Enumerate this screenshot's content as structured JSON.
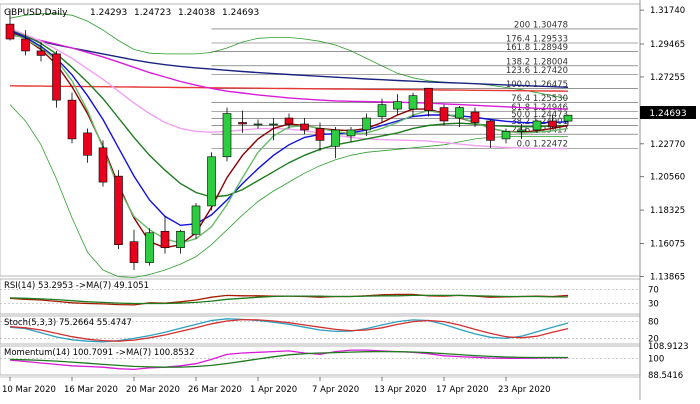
{
  "chart_data": {
    "type": "candlestick",
    "symbol": "GBPUSD,Daily",
    "ohlc_header": [
      "1.24293",
      "1.24723",
      "1.24038",
      "1.24693"
    ],
    "current_price": "1.24693",
    "x_labels": [
      "10 Mar 2020",
      "16 Mar 2020",
      "20 Mar 2020",
      "26 Mar 2020",
      "1 Apr 2020",
      "7 Apr 2020",
      "13 Apr 2020",
      "17 Apr 2020",
      "23 Apr 2020"
    ],
    "x_label_index": [
      0,
      4,
      8,
      12,
      16,
      20,
      24,
      28,
      32
    ],
    "ylim": [
      1.139,
      1.3215
    ],
    "y_ticks": [
      "1.31740",
      "1.29465",
      "1.27255",
      "1.25040",
      "1.22770",
      "1.20560",
      "1.18325",
      "1.16075",
      "1.13865"
    ],
    "candles": [
      {
        "o": 1.308,
        "h": 1.318,
        "l": 1.297,
        "c": 1.298
      },
      {
        "o": 1.298,
        "h": 1.304,
        "l": 1.287,
        "c": 1.29
      },
      {
        "o": 1.29,
        "h": 1.296,
        "l": 1.283,
        "c": 1.287
      },
      {
        "o": 1.288,
        "h": 1.29,
        "l": 1.252,
        "c": 1.257
      },
      {
        "o": 1.257,
        "h": 1.262,
        "l": 1.228,
        "c": 1.231
      },
      {
        "o": 1.235,
        "h": 1.238,
        "l": 1.215,
        "c": 1.22
      },
      {
        "o": 1.225,
        "h": 1.23,
        "l": 1.199,
        "c": 1.202
      },
      {
        "o": 1.206,
        "h": 1.21,
        "l": 1.157,
        "c": 1.16
      },
      {
        "o": 1.162,
        "h": 1.17,
        "l": 1.143,
        "c": 1.148
      },
      {
        "o": 1.148,
        "h": 1.171,
        "l": 1.146,
        "c": 1.168
      },
      {
        "o": 1.169,
        "h": 1.179,
        "l": 1.154,
        "c": 1.158
      },
      {
        "o": 1.158,
        "h": 1.17,
        "l": 1.154,
        "c": 1.169
      },
      {
        "o": 1.167,
        "h": 1.188,
        "l": 1.164,
        "c": 1.186
      },
      {
        "o": 1.186,
        "h": 1.222,
        "l": 1.183,
        "c": 1.219
      },
      {
        "o": 1.219,
        "h": 1.252,
        "l": 1.216,
        "c": 1.248
      },
      {
        "o": 1.242,
        "h": 1.25,
        "l": 1.235,
        "c": 1.241
      },
      {
        "o": 1.241,
        "h": 1.244,
        "l": 1.238,
        "c": 1.241
      },
      {
        "o": 1.241,
        "h": 1.245,
        "l": 1.23,
        "c": 1.241
      },
      {
        "o": 1.245,
        "h": 1.248,
        "l": 1.238,
        "c": 1.241
      },
      {
        "o": 1.241,
        "h": 1.245,
        "l": 1.234,
        "c": 1.237
      },
      {
        "o": 1.238,
        "h": 1.242,
        "l": 1.223,
        "c": 1.23
      },
      {
        "o": 1.226,
        "h": 1.239,
        "l": 1.218,
        "c": 1.237
      },
      {
        "o": 1.233,
        "h": 1.239,
        "l": 1.229,
        "c": 1.237
      },
      {
        "o": 1.237,
        "h": 1.248,
        "l": 1.233,
        "c": 1.245
      },
      {
        "o": 1.246,
        "h": 1.258,
        "l": 1.242,
        "c": 1.254
      },
      {
        "o": 1.251,
        "h": 1.261,
        "l": 1.247,
        "c": 1.256
      },
      {
        "o": 1.251,
        "h": 1.262,
        "l": 1.246,
        "c": 1.26
      },
      {
        "o": 1.265,
        "h": 1.265,
        "l": 1.246,
        "c": 1.25
      },
      {
        "o": 1.252,
        "h": 1.254,
        "l": 1.24,
        "c": 1.243
      },
      {
        "o": 1.245,
        "h": 1.253,
        "l": 1.239,
        "c": 1.252
      },
      {
        "o": 1.249,
        "h": 1.252,
        "l": 1.239,
        "c": 1.242
      },
      {
        "o": 1.243,
        "h": 1.244,
        "l": 1.225,
        "c": 1.23
      },
      {
        "o": 1.231,
        "h": 1.238,
        "l": 1.228,
        "c": 1.236
      },
      {
        "o": 1.236,
        "h": 1.241,
        "l": 1.231,
        "c": 1.237
      },
      {
        "o": 1.237,
        "h": 1.244,
        "l": 1.235,
        "c": 1.243
      },
      {
        "o": 1.243,
        "h": 1.247,
        "l": 1.238,
        "c": 1.239
      },
      {
        "o": 1.2429,
        "h": 1.2472,
        "l": 1.2404,
        "c": 1.2469
      }
    ],
    "ma_lines": [
      {
        "name": "",
        "color": "#1a237e",
        "y": [
          1.301,
          1.299,
          1.2965,
          1.294,
          1.292,
          1.29,
          1.288,
          1.286,
          1.284,
          1.2822,
          1.2808,
          1.2796,
          1.2786,
          1.2778,
          1.277,
          1.2762,
          1.2755,
          1.2748,
          1.2742,
          1.2736,
          1.273,
          1.2724,
          1.2718,
          1.2712,
          1.2707,
          1.2702,
          1.2697,
          1.2692,
          1.2688,
          1.2684,
          1.268,
          1.2676,
          1.2672,
          1.2668,
          1.2664,
          1.266,
          1.2656
        ]
      },
      {
        "name": "",
        "color": "#e53935",
        "y": [
          1.2666,
          1.2665,
          1.2664,
          1.2663,
          1.2662,
          1.2661,
          1.266,
          1.2659,
          1.2658,
          1.2657,
          1.2656,
          1.2655,
          1.2654,
          1.2653,
          1.2652,
          1.2651,
          1.265,
          1.2649,
          1.2648,
          1.2647,
          1.2646,
          1.2645,
          1.2644,
          1.2643,
          1.2642,
          1.2641,
          1.264,
          1.2639,
          1.2638,
          1.2637,
          1.2636,
          1.2635,
          1.2634,
          1.2633,
          1.2632,
          1.2631,
          1.263
        ]
      },
      {
        "name": "",
        "color": "#d81bd8",
        "y": [
          1.302,
          1.2995,
          1.297,
          1.2945,
          1.292,
          1.289,
          1.286,
          1.2825,
          1.279,
          1.2755,
          1.2725,
          1.2695,
          1.267,
          1.2648,
          1.263,
          1.2618,
          1.2605,
          1.2595,
          1.2585,
          1.2577,
          1.257,
          1.2565,
          1.2562,
          1.256,
          1.2558,
          1.2556,
          1.2553,
          1.255,
          1.2545,
          1.254,
          1.2535,
          1.253,
          1.2525,
          1.252,
          1.2515,
          1.2512,
          1.251
        ]
      },
      {
        "name": "",
        "color": "#f0a0f0",
        "y": [
          1.305,
          1.301,
          1.2965,
          1.291,
          1.285,
          1.278,
          1.271,
          1.263,
          1.255,
          1.248,
          1.242,
          1.238,
          1.236,
          1.2355,
          1.236,
          1.237,
          1.2378,
          1.238,
          1.2375,
          1.2365,
          1.235,
          1.2335,
          1.232,
          1.231,
          1.2305,
          1.2302,
          1.23,
          1.2295,
          1.2285,
          1.2275,
          1.2265,
          1.2258,
          1.2252,
          1.2248,
          1.2246,
          1.2245,
          1.2245
        ]
      },
      {
        "name": "",
        "color": "#1e7b1e",
        "y": [
          1.304,
          1.3,
          1.295,
          1.288,
          1.279,
          1.269,
          1.258,
          1.245,
          1.232,
          1.22,
          1.21,
          1.201,
          1.195,
          1.192,
          1.193,
          1.197,
          1.203,
          1.209,
          1.215,
          1.22,
          1.224,
          1.227,
          1.229,
          1.231,
          1.233,
          1.235,
          1.238,
          1.24,
          1.241,
          1.2415,
          1.241,
          1.24,
          1.2395,
          1.2392,
          1.2392,
          1.2396,
          1.24
        ]
      },
      {
        "name": "",
        "color": "#1010e0",
        "y": [
          1.304,
          1.299,
          1.293,
          1.285,
          1.274,
          1.26,
          1.244,
          1.225,
          1.206,
          1.19,
          1.179,
          1.173,
          1.174,
          1.18,
          1.19,
          1.201,
          1.211,
          1.22,
          1.227,
          1.232,
          1.234,
          1.2345,
          1.235,
          1.237,
          1.24,
          1.243,
          1.246,
          1.247,
          1.247,
          1.2465,
          1.2455,
          1.244,
          1.2428,
          1.242,
          1.2418,
          1.242,
          1.2425
        ]
      },
      {
        "name": "",
        "color": "#8b0000",
        "y": [
          1.303,
          1.298,
          1.291,
          1.281,
          1.266,
          1.248,
          1.226,
          1.2,
          1.178,
          1.162,
          1.158,
          1.16,
          1.168,
          1.185,
          1.205,
          1.22,
          1.231,
          1.238,
          1.241,
          1.24,
          1.238,
          1.237,
          1.2365,
          1.238,
          1.242,
          1.247,
          1.251,
          1.251,
          1.248,
          1.245,
          1.242,
          1.238,
          1.236,
          1.2355,
          1.2365,
          1.238,
          1.24
        ]
      },
      {
        "name": "",
        "color": "#66bb6a",
        "y": [
          1.302,
          1.298,
          1.292,
          1.284,
          1.27,
          1.25,
          1.225,
          1.198,
          1.179,
          1.17,
          1.164,
          1.161,
          1.164,
          1.172,
          1.187,
          1.205,
          1.222,
          1.233,
          1.239,
          1.24,
          1.238,
          1.236,
          1.2345,
          1.235,
          1.238,
          1.242,
          1.247,
          1.25,
          1.248,
          1.2455,
          1.242,
          1.238,
          1.236,
          1.235,
          1.2355,
          1.2365,
          1.238
        ]
      }
    ],
    "bands": [
      {
        "name": "",
        "color": "#2e9e2e",
        "upper": [
          1.312,
          1.314,
          1.315,
          1.315,
          1.314,
          1.31,
          1.304,
          1.297,
          1.291,
          1.2885,
          1.288,
          1.288,
          1.288,
          1.289,
          1.292,
          1.296,
          1.2985,
          1.299,
          1.299,
          1.298,
          1.2965,
          1.294,
          1.29,
          1.285,
          1.28,
          1.275,
          1.272,
          1.27,
          1.269,
          1.2685,
          1.268,
          1.267,
          1.2655,
          1.264,
          1.262,
          1.26,
          1.258
        ],
        "lower": [
          1.254,
          1.243,
          1.227,
          1.204,
          1.178,
          1.155,
          1.143,
          1.1385,
          1.138,
          1.14,
          1.143,
          1.147,
          1.152,
          1.16,
          1.17,
          1.18,
          1.189,
          1.196,
          1.202,
          1.208,
          1.213,
          1.217,
          1.22,
          1.222,
          1.223,
          1.224,
          1.225,
          1.226,
          1.227,
          1.229,
          1.231,
          1.232,
          1.2325,
          1.2325,
          1.2325,
          1.2325,
          1.2325
        ]
      }
    ],
    "fibo": {
      "color": "#555555",
      "levels": [
        {
          "label": "200 1.30478",
          "y": 1.30478,
          "pos": "upper"
        },
        {
          "label": "176.4 1.29533",
          "y": 1.29533,
          "pos": "upper"
        },
        {
          "label": "161.8 1.28949",
          "y": 1.28949,
          "pos": "upper"
        },
        {
          "label": "138.2 1.28004",
          "y": 1.28004,
          "pos": "upper"
        },
        {
          "label": "123.6 1.27420",
          "y": 1.2742,
          "pos": "upper"
        },
        {
          "label": "100.0 1.26475",
          "y": 1.26475,
          "pos": "upper"
        },
        {
          "label": "76.4 1.25530",
          "y": 1.2553,
          "pos": "lower"
        },
        {
          "label": "61.8 1.24946",
          "y": 1.24946,
          "pos": "lower"
        },
        {
          "label": "50.0 1.24473",
          "y": 1.24473,
          "pos": "lower"
        },
        {
          "label": "38.2 1.24001",
          "y": 1.24001,
          "pos": "lower"
        },
        {
          "label": "23.6 1.23417",
          "y": 1.23417,
          "pos": "lower"
        },
        {
          "label": "0.0 1.22472",
          "y": 1.22472,
          "pos": "lower"
        }
      ]
    },
    "indicators": [
      {
        "title": "RSI(14) 53.2953 ->MA(7) 49.1051",
        "ticks": [
          "70",
          "30"
        ],
        "tick_values": [
          70,
          30
        ],
        "ylim": [
          0,
          100
        ],
        "guides": [
          70,
          30
        ],
        "lines": [
          {
            "color": "#a61c00",
            "y": [
              45,
              42,
              40,
              36,
              32,
              30,
              29,
              27,
              26,
              32,
              31,
              35,
              40,
              48,
              53,
              52,
              52,
              51,
              51,
              50,
              48,
              50,
              50,
              52,
              55,
              56,
              56,
              52,
              51,
              53,
              51,
              48,
              49,
              50,
              51,
              50,
              53
            ]
          },
          {
            "color": "#1e7b1e",
            "y": [
              46,
              45,
              43,
              41,
              38,
              35,
              33,
              31,
              30,
              30,
              30,
              31,
              33,
              37,
              42,
              45,
              48,
              50,
              51,
              51,
              51,
              50,
              50,
              51,
              52,
              52,
              53,
              53,
              53,
              53,
              52,
              51,
              50,
              50,
              50,
              49,
              49
            ]
          }
        ]
      },
      {
        "title": "Stoch(5,3,3) 75.2664 55.4747",
        "ticks": [
          "80",
          "20"
        ],
        "tick_values": [
          80,
          20
        ],
        "ylim": [
          0,
          100
        ],
        "guides": [
          80,
          20
        ],
        "lines": [
          {
            "color": "#2e9fbf",
            "y": [
              60,
              55,
              40,
              25,
              15,
              10,
              8,
              12,
              20,
              30,
              42,
              56,
              70,
              84,
              90,
              88,
              84,
              78,
              70,
              60,
              50,
              45,
              46,
              55,
              68,
              80,
              86,
              84,
              70,
              52,
              36,
              24,
              20,
              28,
              44,
              60,
              75
            ]
          },
          {
            "color": "#d32f2f",
            "y": [
              62,
              58,
              50,
              38,
              26,
              17,
              12,
              10,
              14,
              22,
              32,
              45,
              58,
              72,
              82,
              87,
              86,
              82,
              76,
              68,
              60,
              52,
              48,
              50,
              58,
              70,
              80,
              84,
              80,
              68,
              52,
              38,
              26,
              22,
              28,
              42,
              55
            ]
          }
        ]
      },
      {
        "title": "Momentum(14) 100.7091 ->MA(7) 100.8532",
        "ticks": [
          "108.9123",
          "100",
          "88.5416"
        ],
        "tick_values": [
          108.9123,
          100,
          88.5416
        ],
        "ylim": [
          88.5416,
          108.9123
        ],
        "guides": [
          100
        ],
        "lines": [
          {
            "color": "#d81bd8",
            "y": [
              99.0,
              98.0,
              97.0,
              96.0,
              95.0,
              94.5,
              94.0,
              93.0,
              92.5,
              93.5,
              94.0,
              95.0,
              96.5,
              99.5,
              103.0,
              104.0,
              104.5,
              105.0,
              105.5,
              104.0,
              103.0,
              105.0,
              106.0,
              106.0,
              105.5,
              105.0,
              104.5,
              103.5,
              102.0,
              101.5,
              101.0,
              100.5,
              100.3,
              100.2,
              100.4,
              100.6,
              100.7
            ]
          },
          {
            "color": "#1e7b1e",
            "y": [
              99.5,
              99.2,
              98.8,
              98.3,
              97.6,
              96.8,
              96.0,
              95.3,
              94.6,
              94.2,
              94.0,
              94.1,
              94.5,
              95.3,
              96.6,
              98.2,
              99.8,
              101.3,
              102.7,
              103.5,
              104.0,
              104.3,
              104.6,
              104.9,
              105.0,
              104.9,
              104.7,
              104.2,
              103.6,
              102.9,
              102.2,
              101.6,
              101.2,
              100.9,
              100.8,
              100.8,
              100.85
            ]
          }
        ]
      }
    ]
  }
}
